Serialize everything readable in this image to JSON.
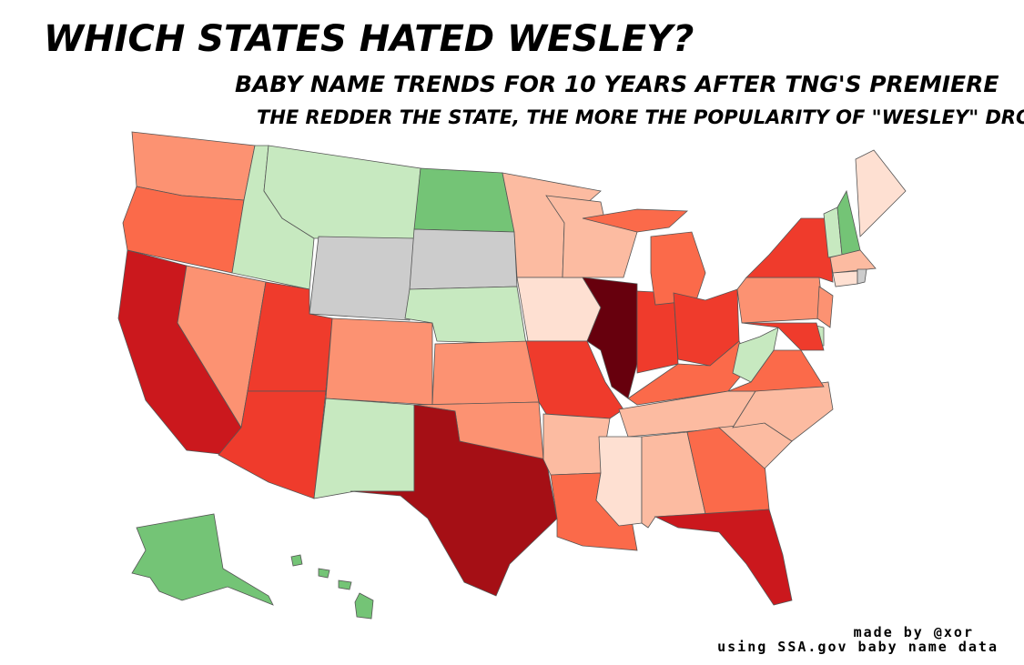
{
  "header": {
    "title": "WHICH STATES HATED WESLEY?",
    "subtitle": "BABY NAME TRENDS FOR 10 YEARS AFTER TNG'S PREMIERE",
    "caption": "THE REDDER THE STATE, THE MORE THE POPULARITY OF \"WESLEY\" DROPPED"
  },
  "credit": [
    "made by @xor",
    "using SSA.gov baby name data"
  ]
}
